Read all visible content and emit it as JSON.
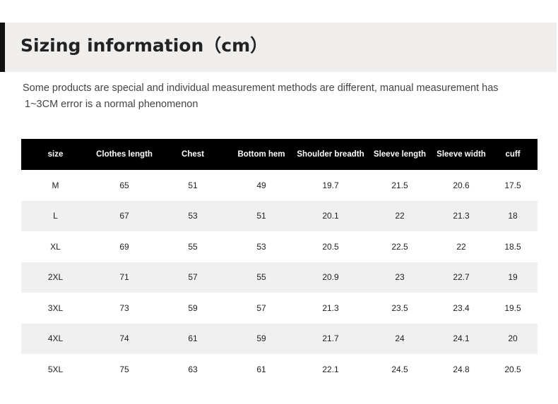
{
  "header": {
    "title": "Sizing information（cm）"
  },
  "note": {
    "lines": [
      "Some products are special and individual measurement methods are different, manual measurement has",
      "1~3CM error is a normal phenomenon"
    ]
  },
  "table": {
    "columns": [
      "size",
      "Clothes length",
      "Chest",
      "Bottom hem",
      "Shoulder breadth",
      "Sleeve length",
      "Sleeve width",
      "cuff"
    ],
    "rows": [
      [
        "M",
        "65",
        "51",
        "49",
        "19.7",
        "21.5",
        "20.6",
        "17.5"
      ],
      [
        "L",
        "67",
        "53",
        "51",
        "20.1",
        "22",
        "21.3",
        "18"
      ],
      [
        "XL",
        "69",
        "55",
        "53",
        "20.5",
        "22.5",
        "22",
        "18.5"
      ],
      [
        "2XL",
        "71",
        "57",
        "55",
        "20.9",
        "23",
        "22.7",
        "19"
      ],
      [
        "3XL",
        "73",
        "59",
        "57",
        "21.3",
        "23.5",
        "23.4",
        "19.5"
      ],
      [
        "4XL",
        "74",
        "61",
        "59",
        "21.7",
        "24",
        "24.1",
        "20"
      ],
      [
        "5XL",
        "75",
        "63",
        "61",
        "22.1",
        "24.5",
        "24.8",
        "20.5"
      ]
    ]
  }
}
